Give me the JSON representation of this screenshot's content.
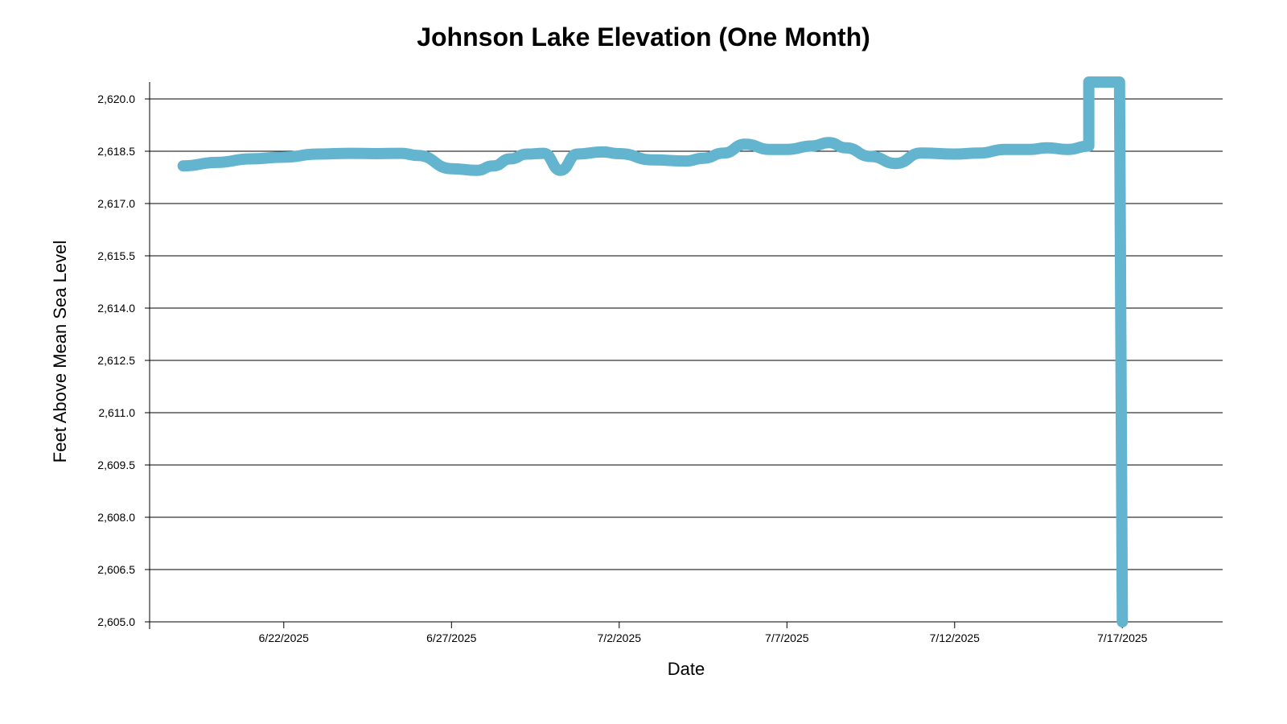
{
  "colors": {
    "line": "#63B5CF",
    "grid": "#000000",
    "background": "#FFFFFF"
  },
  "chart_data": {
    "type": "line",
    "title": "Johnson Lake Elevation (One Month)",
    "xlabel": "Date",
    "ylabel": "Feet Above Mean Sea Level",
    "ylim": [
      2605.0,
      2620.5
    ],
    "xlim": [
      "2025-06-18T00:00",
      "2025-07-19T00:00"
    ],
    "grid": "horizontal",
    "yticks": [
      "2,605.0",
      "2,606.5",
      "2,608.0",
      "2,609.5",
      "2,611.0",
      "2,612.5",
      "2,614.0",
      "2,615.5",
      "2,617.0",
      "2,618.5",
      "2,620.0"
    ],
    "ytick_values": [
      2605.0,
      2606.5,
      2608.0,
      2609.5,
      2611.0,
      2612.5,
      2614.0,
      2615.5,
      2617.0,
      2618.5,
      2620.0
    ],
    "xticks": [
      "6/22/2025",
      "6/27/2025",
      "7/2/2025",
      "7/7/2025",
      "7/12/2025",
      "7/17/2025"
    ],
    "xtick_values": [
      "2025-06-22T00:00",
      "2025-06-27T00:00",
      "2025-07-02T00:00",
      "2025-07-07T00:00",
      "2025-07-12T00:00",
      "2025-07-17T00:00"
    ],
    "series": [
      {
        "x": [
          "2025-06-19T00:00",
          "2025-06-20T00:00",
          "2025-06-21T00:00",
          "2025-06-22T00:00",
          "2025-06-23T00:00",
          "2025-06-24T00:00",
          "2025-06-24T18:00",
          "2025-06-25T12:00",
          "2025-06-26T00:00",
          "2025-06-27T00:00",
          "2025-06-27T18:00",
          "2025-06-28T06:00",
          "2025-06-28T18:00",
          "2025-06-29T06:00",
          "2025-06-29T18:00",
          "2025-06-30T06:00",
          "2025-06-30T18:00",
          "2025-07-01T12:00",
          "2025-07-02T00:00",
          "2025-07-03T00:00",
          "2025-07-04T00:00",
          "2025-07-04T12:00",
          "2025-07-05T03:00",
          "2025-07-05T18:00",
          "2025-07-06T12:00",
          "2025-07-07T00:00",
          "2025-07-07T18:00",
          "2025-07-08T06:00",
          "2025-07-08T18:00",
          "2025-07-09T12:00",
          "2025-07-10T06:00",
          "2025-07-11T00:00",
          "2025-07-12T00:00",
          "2025-07-12T18:00",
          "2025-07-13T12:00",
          "2025-07-14T06:00",
          "2025-07-14T18:00",
          "2025-07-15T09:00",
          "2025-07-16T00:00",
          "2025-07-16T00:00",
          "2025-07-16T22:00",
          "2025-07-17T00:00"
        ],
        "y": [
          2618.08,
          2618.18,
          2618.28,
          2618.33,
          2618.42,
          2618.44,
          2618.43,
          2618.44,
          2618.38,
          2618.0,
          2617.95,
          2618.08,
          2618.28,
          2618.42,
          2618.44,
          2617.95,
          2618.42,
          2618.48,
          2618.43,
          2618.25,
          2618.22,
          2618.3,
          2618.45,
          2618.7,
          2618.55,
          2618.55,
          2618.65,
          2618.75,
          2618.6,
          2618.35,
          2618.15,
          2618.45,
          2618.42,
          2618.45,
          2618.55,
          2618.55,
          2618.6,
          2618.55,
          2618.65,
          2620.5,
          2620.5,
          2605.0
        ]
      }
    ]
  }
}
